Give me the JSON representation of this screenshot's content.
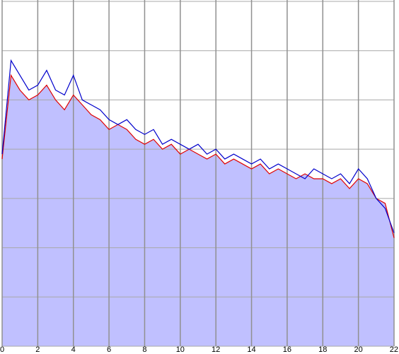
{
  "chart_data": {
    "type": "line",
    "x": [
      0,
      0.5,
      1,
      1.5,
      2,
      2.5,
      3,
      3.5,
      4,
      4.5,
      5,
      5.5,
      6,
      6.5,
      7,
      7.5,
      8,
      8.5,
      9,
      9.5,
      10,
      10.5,
      11,
      11.5,
      12,
      12.5,
      13,
      13.5,
      14,
      14.5,
      15,
      15.5,
      16,
      16.5,
      17,
      17.5,
      18,
      18.5,
      19,
      19.5,
      20,
      20.5,
      21,
      21.5,
      22
    ],
    "series": [
      {
        "color": "#0000cc",
        "values": [
          3.9,
          5.8,
          5.5,
          5.2,
          5.3,
          5.6,
          5.2,
          5.1,
          5.5,
          5.0,
          4.9,
          4.8,
          4.6,
          4.5,
          4.6,
          4.4,
          4.3,
          4.4,
          4.1,
          4.2,
          4.1,
          4.0,
          4.1,
          3.9,
          4.0,
          3.8,
          3.9,
          3.8,
          3.7,
          3.8,
          3.6,
          3.7,
          3.6,
          3.5,
          3.4,
          3.6,
          3.5,
          3.4,
          3.5,
          3.3,
          3.6,
          3.4,
          3.0,
          2.8,
          2.3
        ]
      },
      {
        "color": "#e00000",
        "fill": "#c0c0ff",
        "values": [
          3.8,
          5.5,
          5.2,
          5.0,
          5.1,
          5.3,
          5.0,
          4.8,
          5.1,
          4.9,
          4.7,
          4.6,
          4.4,
          4.5,
          4.4,
          4.2,
          4.1,
          4.2,
          4.0,
          4.1,
          3.9,
          4.0,
          3.9,
          3.8,
          3.9,
          3.7,
          3.8,
          3.7,
          3.6,
          3.7,
          3.5,
          3.6,
          3.5,
          3.4,
          3.5,
          3.4,
          3.4,
          3.3,
          3.4,
          3.2,
          3.4,
          3.3,
          3.0,
          2.9,
          2.2
        ]
      }
    ],
    "xlim": [
      0,
      22
    ],
    "xticks": [
      0,
      2,
      4,
      6,
      8,
      10,
      12,
      14,
      16,
      18,
      20,
      22
    ],
    "ylim": [
      0,
      7
    ],
    "yticks": [
      0,
      1,
      2,
      3,
      4,
      5,
      6,
      7
    ],
    "grid": true
  }
}
